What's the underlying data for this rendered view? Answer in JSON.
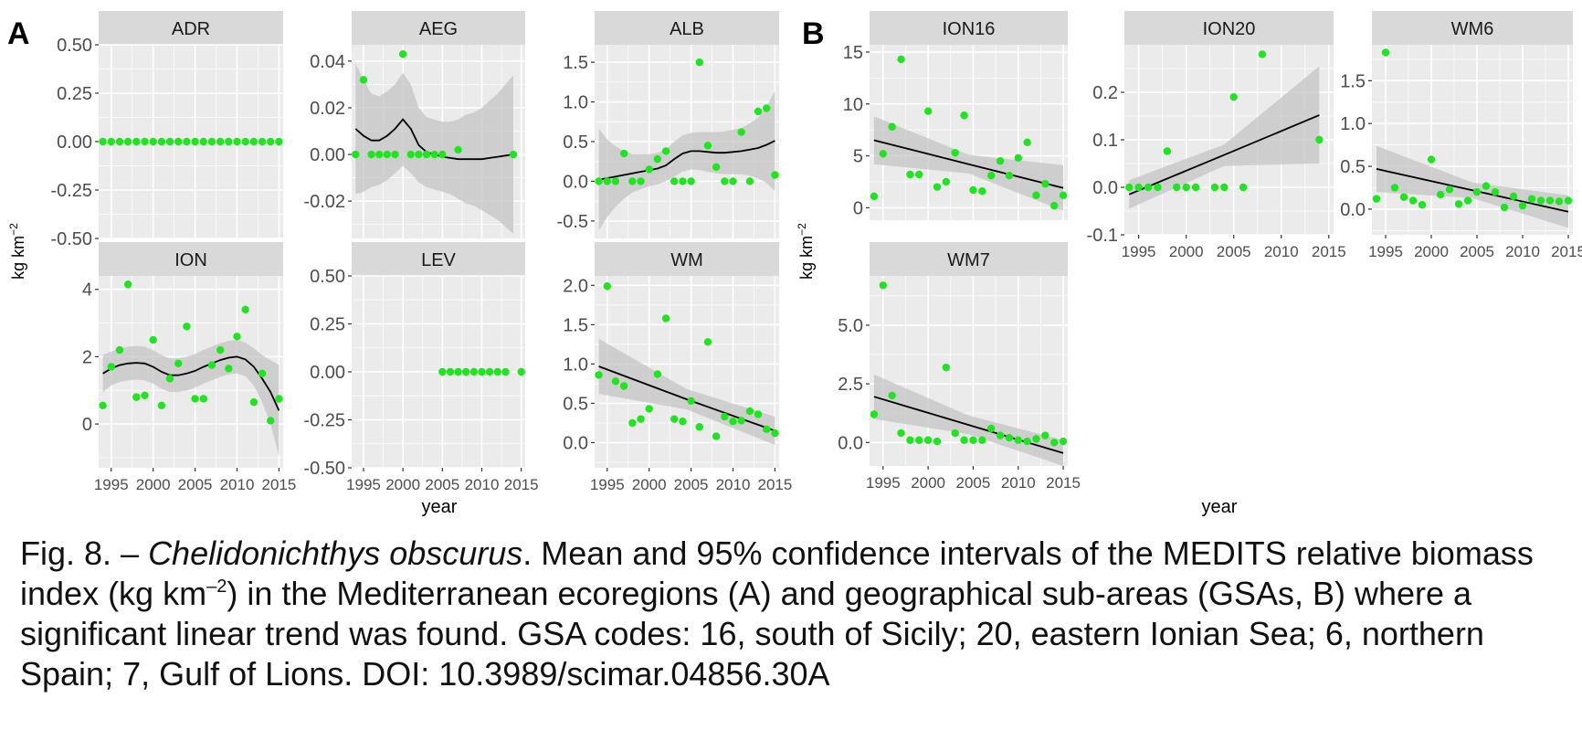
{
  "figure": {
    "panel_a_label": "A",
    "panel_b_label": "B",
    "ylabel_main": "kg km",
    "ylabel_sup": "−2",
    "xlabel": "year"
  },
  "colors": {
    "panel_bg": "#ebebeb",
    "grid": "#ffffff",
    "strip_bg": "#d9d9d9",
    "point": "#1ee61e",
    "line": "#000000",
    "ribbon": "#c4c4c4",
    "text": "#4d4d4d"
  },
  "caption": {
    "p1": "Fig. 8. – ",
    "species": "Chelidonichthys obscurus",
    "p2": ". Mean and 95% confidence intervals of the MEDITS relative biomass index (kg km",
    "p2_sup": "–2",
    "p3": ") in the Mediterranean ecoregions (A) and geographical sub-areas (GSAs, B) where a significant linear trend was found. GSA codes: 16, south of Sicily; 20, eastern Ionian Sea; 6, northern Spain; 7, Gulf of Lions. DOI: 10.3989/scimar.04856.30A"
  },
  "chart_data": [
    {
      "type": "scatter",
      "title": "ADR",
      "fit": "loess",
      "xlim": [
        1993.5,
        2015.5
      ],
      "ylim": [
        -0.5,
        0.5
      ],
      "yticks": [
        -0.5,
        -0.25,
        0,
        0.25,
        0.5
      ],
      "ytick_labels": [
        "-0.50",
        "-0.25",
        "0.00",
        "0.25",
        "0.50"
      ],
      "xticks": [],
      "x": [
        1994,
        1995,
        1996,
        1997,
        1998,
        1999,
        2000,
        2001,
        2002,
        2003,
        2004,
        2005,
        2006,
        2007,
        2008,
        2009,
        2010,
        2011,
        2012,
        2013,
        2014,
        2015
      ],
      "y": [
        0,
        0,
        0,
        0,
        0,
        0,
        0,
        0,
        0,
        0,
        0,
        0,
        0,
        0,
        0,
        0,
        0,
        0,
        0,
        0,
        0,
        0
      ],
      "fit_x": [],
      "fit_y": [],
      "ci_lo": [],
      "ci_hi": []
    },
    {
      "type": "scatter",
      "title": "AEG",
      "fit": "loess",
      "xlim": [
        1993.5,
        2015.5
      ],
      "ylim": [
        -0.036,
        0.047
      ],
      "yticks": [
        -0.02,
        0,
        0.02,
        0.04
      ],
      "ytick_labels": [
        "-0.02",
        "0.00",
        "0.02",
        "0.04"
      ],
      "xticks": [],
      "x": [
        1994,
        1995,
        1996,
        1997,
        1998,
        1999,
        2000,
        2001,
        2002,
        2003,
        2004,
        2005,
        2007,
        2014
      ],
      "y": [
        0,
        0.032,
        0,
        0,
        0,
        0,
        0.043,
        0,
        0,
        0,
        0,
        0,
        0.002,
        0
      ],
      "fit_x": [
        1994,
        1995,
        1996,
        1997,
        1998,
        1999,
        2000,
        2001,
        2002,
        2003,
        2004,
        2005,
        2006,
        2007,
        2008,
        2009,
        2010,
        2011,
        2012,
        2013,
        2014
      ],
      "fit_y": [
        0.011,
        0.008,
        0.006,
        0.006,
        0.008,
        0.011,
        0.015,
        0.011,
        0.004,
        0.001,
        0,
        -0.001,
        -0.0015,
        -0.002,
        -0.002,
        -0.002,
        -0.002,
        -0.0015,
        -0.001,
        -0.0005,
        0
      ],
      "ci_lo": [
        -0.017,
        -0.016,
        -0.014,
        -0.013,
        -0.011,
        -0.008,
        -0.005,
        -0.008,
        -0.012,
        -0.014,
        -0.015,
        -0.016,
        -0.017,
        -0.019,
        -0.021,
        -0.022,
        -0.024,
        -0.026,
        -0.028,
        -0.031,
        -0.034
      ],
      "ci_hi": [
        0.039,
        0.032,
        0.026,
        0.025,
        0.027,
        0.03,
        0.035,
        0.03,
        0.02,
        0.016,
        0.015,
        0.014,
        0.014,
        0.015,
        0.017,
        0.018,
        0.02,
        0.023,
        0.026,
        0.03,
        0.034
      ]
    },
    {
      "type": "scatter",
      "title": "ALB",
      "fit": "loess",
      "xlim": [
        1993.5,
        2015.5
      ],
      "ylim": [
        -0.72,
        1.72
      ],
      "yticks": [
        -0.5,
        0,
        0.5,
        1.0,
        1.5
      ],
      "ytick_labels": [
        "-0.5",
        "0.0",
        "0.5",
        "1.0",
        "1.5"
      ],
      "xticks": [],
      "x": [
        1994,
        1995,
        1996,
        1997,
        1998,
        1999,
        2000,
        2001,
        2002,
        2003,
        2004,
        2005,
        2006,
        2007,
        2008,
        2009,
        2010,
        2011,
        2012,
        2013,
        2014,
        2015
      ],
      "y": [
        0,
        0,
        0,
        0.35,
        0,
        0,
        0.15,
        0.28,
        0.38,
        0,
        0,
        0,
        1.5,
        0.45,
        0.18,
        0,
        0,
        0.62,
        0,
        0.88,
        0.92,
        0.08
      ],
      "fit_x": [
        1994,
        1995,
        1996,
        1997,
        1998,
        1999,
        2000,
        2001,
        2002,
        2003,
        2004,
        2005,
        2006,
        2007,
        2008,
        2009,
        2010,
        2011,
        2012,
        2013,
        2014,
        2015
      ],
      "fit_y": [
        0.02,
        0.04,
        0.06,
        0.08,
        0.1,
        0.12,
        0.14,
        0.16,
        0.2,
        0.28,
        0.35,
        0.38,
        0.38,
        0.37,
        0.36,
        0.36,
        0.37,
        0.38,
        0.4,
        0.42,
        0.46,
        0.51
      ],
      "ci_lo": [
        -0.62,
        -0.45,
        -0.32,
        -0.22,
        -0.14,
        -0.1,
        -0.06,
        -0.04,
        0.0,
        0.06,
        0.12,
        0.15,
        0.14,
        0.12,
        0.1,
        0.09,
        0.09,
        0.09,
        0.07,
        0.04,
        -0.02,
        -0.12
      ],
      "ci_hi": [
        0.66,
        0.53,
        0.44,
        0.38,
        0.34,
        0.34,
        0.34,
        0.36,
        0.4,
        0.5,
        0.58,
        0.61,
        0.62,
        0.62,
        0.62,
        0.63,
        0.65,
        0.67,
        0.73,
        0.8,
        0.94,
        1.14
      ]
    },
    {
      "type": "scatter",
      "title": "ION",
      "fit": "loess",
      "xlim": [
        1993.5,
        2015.5
      ],
      "ylim": [
        -1.3,
        4.4
      ],
      "yticks": [
        0,
        2,
        4
      ],
      "ytick_labels": [
        "0",
        "2",
        "4"
      ],
      "xticks": [
        1995,
        2000,
        2005,
        2010,
        2015
      ],
      "xtick_labels": [
        "1995",
        "2000",
        "2005",
        "2010",
        "2015"
      ],
      "x": [
        1994,
        1995,
        1996,
        1997,
        1998,
        1999,
        2000,
        2001,
        2002,
        2003,
        2004,
        2005,
        2006,
        2007,
        2008,
        2009,
        2010,
        2011,
        2012,
        2013,
        2014,
        2015
      ],
      "y": [
        0.55,
        1.7,
        2.2,
        4.15,
        0.8,
        0.85,
        2.5,
        0.55,
        1.35,
        1.8,
        2.9,
        0.75,
        0.75,
        1.75,
        2.2,
        1.65,
        2.6,
        3.4,
        0.65,
        1.5,
        0.1,
        0.75
      ],
      "fit_x": [
        1994,
        1995,
        1996,
        1997,
        1998,
        1999,
        2000,
        2001,
        2002,
        2003,
        2004,
        2005,
        2006,
        2007,
        2008,
        2009,
        2010,
        2011,
        2012,
        2013,
        2014,
        2015
      ],
      "fit_y": [
        1.5,
        1.65,
        1.75,
        1.8,
        1.82,
        1.8,
        1.7,
        1.55,
        1.45,
        1.45,
        1.5,
        1.58,
        1.7,
        1.8,
        1.9,
        1.97,
        2.0,
        1.92,
        1.7,
        1.35,
        0.95,
        0.4
      ],
      "ci_lo": [
        0.95,
        1.15,
        1.25,
        1.3,
        1.32,
        1.3,
        1.2,
        1.05,
        0.95,
        0.95,
        1.0,
        1.08,
        1.2,
        1.3,
        1.4,
        1.47,
        1.5,
        1.42,
        1.15,
        0.65,
        0.0,
        -0.95
      ],
      "ci_hi": [
        2.05,
        2.15,
        2.25,
        2.3,
        2.32,
        2.3,
        2.2,
        2.05,
        1.95,
        1.95,
        2.0,
        2.08,
        2.2,
        2.3,
        2.4,
        2.47,
        2.5,
        2.42,
        2.25,
        2.05,
        1.9,
        1.75
      ]
    },
    {
      "type": "scatter",
      "title": "LEV",
      "fit": "loess",
      "xlim": [
        1993.5,
        2015.5
      ],
      "ylim": [
        -0.5,
        0.5
      ],
      "yticks": [
        -0.5,
        -0.25,
        0,
        0.25,
        0.5
      ],
      "ytick_labels": [
        "-0.50",
        "-0.25",
        "0.00",
        "0.25",
        "0.50"
      ],
      "xticks": [
        1995,
        2000,
        2005,
        2010,
        2015
      ],
      "xtick_labels": [
        "1995",
        "2000",
        "2005",
        "2010",
        "2015"
      ],
      "x": [
        2005,
        2006,
        2007,
        2008,
        2009,
        2010,
        2011,
        2012,
        2013,
        2015
      ],
      "y": [
        0,
        0,
        0,
        0,
        0,
        0,
        0,
        0,
        0,
        0
      ],
      "fit_x": [],
      "fit_y": [],
      "ci_lo": [],
      "ci_hi": []
    },
    {
      "type": "scatter",
      "title": "WM",
      "fit": "linear",
      "xlim": [
        1993.5,
        2015.5
      ],
      "ylim": [
        -0.32,
        2.12
      ],
      "yticks": [
        0,
        0.5,
        1.0,
        1.5,
        2.0
      ],
      "ytick_labels": [
        "0.0",
        "0.5",
        "1.0",
        "1.5",
        "2.0"
      ],
      "xticks": [
        1995,
        2000,
        2005,
        2010,
        2015
      ],
      "xtick_labels": [
        "1995",
        "2000",
        "2005",
        "2010",
        "2015"
      ],
      "x": [
        1994,
        1995,
        1996,
        1997,
        1998,
        1999,
        2000,
        2001,
        2002,
        2003,
        2004,
        2005,
        2006,
        2007,
        2008,
        2009,
        2010,
        2011,
        2012,
        2013,
        2014,
        2015
      ],
      "y": [
        0.86,
        1.99,
        0.78,
        0.72,
        0.25,
        0.3,
        0.43,
        0.87,
        1.58,
        0.3,
        0.27,
        0.53,
        0.2,
        1.28,
        0.08,
        0.33,
        0.27,
        0.28,
        0.4,
        0.36,
        0.17,
        0.12
      ],
      "fit_x": [
        1994,
        2004.5,
        2015
      ],
      "fit_y": [
        0.97,
        0.55,
        0.15
      ],
      "ci_lo": [
        0.62,
        0.42,
        -0.03
      ],
      "ci_hi": [
        1.32,
        0.68,
        0.33
      ]
    },
    {
      "type": "scatter",
      "title": "ION16",
      "fit": "linear",
      "xlim": [
        1993.5,
        2015.5
      ],
      "ylim": [
        -1.2,
        15.7
      ],
      "yticks": [
        0,
        5,
        10,
        15
      ],
      "ytick_labels": [
        "0",
        "5",
        "10",
        "15"
      ],
      "xticks": [],
      "x": [
        1994,
        1995,
        1996,
        1997,
        1998,
        1999,
        2000,
        2001,
        2002,
        2003,
        2004,
        2005,
        2006,
        2007,
        2008,
        2009,
        2010,
        2011,
        2012,
        2013,
        2014,
        2015
      ],
      "y": [
        1.1,
        5.2,
        7.8,
        14.3,
        3.2,
        3.2,
        9.3,
        2.0,
        2.5,
        5.3,
        8.9,
        1.7,
        1.6,
        3.1,
        4.5,
        3.1,
        4.8,
        6.3,
        1.2,
        2.3,
        0.2,
        1.2
      ],
      "fit_x": [
        1994,
        2004.5,
        2015
      ],
      "fit_y": [
        6.5,
        4.2,
        1.9
      ],
      "ci_lo": [
        4.2,
        3.3,
        -0.3
      ],
      "ci_hi": [
        8.8,
        5.1,
        4.1
      ]
    },
    {
      "type": "scatter",
      "title": "ION20",
      "fit": "linear",
      "xlim": [
        1993.5,
        2015.5
      ],
      "ylim": [
        -0.1,
        0.3
      ],
      "yticks": [
        -0.1,
        0,
        0.1,
        0.2
      ],
      "ytick_labels": [
        "-0.1",
        "0.0",
        "0.1",
        "0.2"
      ],
      "xticks": [
        1995,
        2000,
        2005,
        2010,
        2015
      ],
      "xtick_labels": [
        "1995",
        "2000",
        "2005",
        "2010",
        "2015"
      ],
      "x": [
        1994,
        1995,
        1996,
        1997,
        1998,
        1999,
        2000,
        2001,
        2003,
        2004,
        2005,
        2006,
        2008,
        2014
      ],
      "y": [
        0,
        0,
        0,
        0,
        0.076,
        0,
        0,
        0,
        0,
        0,
        0.19,
        0,
        0.28,
        0.1
      ],
      "fit_x": [
        1994,
        2004,
        2014
      ],
      "fit_y": [
        -0.015,
        0.068,
        0.152
      ],
      "ci_lo": [
        -0.045,
        0.045,
        0.05
      ],
      "ci_hi": [
        0.015,
        0.09,
        0.255
      ]
    },
    {
      "type": "scatter",
      "title": "WM6",
      "fit": "linear",
      "xlim": [
        1993.5,
        2015.5
      ],
      "ylim": [
        -0.3,
        1.92
      ],
      "yticks": [
        0,
        0.5,
        1.0,
        1.5
      ],
      "ytick_labels": [
        "0.0",
        "0.5",
        "1.0",
        "1.5"
      ],
      "xticks": [
        1995,
        2000,
        2005,
        2010,
        2015
      ],
      "xtick_labels": [
        "1995",
        "2000",
        "2005",
        "2010",
        "2015"
      ],
      "x": [
        1994,
        1995,
        1996,
        1997,
        1998,
        1999,
        2000,
        2001,
        2002,
        2003,
        2004,
        2005,
        2006,
        2007,
        2008,
        2009,
        2010,
        2011,
        2012,
        2013,
        2014,
        2015
      ],
      "y": [
        0.12,
        1.83,
        0.25,
        0.14,
        0.1,
        0.05,
        0.58,
        0.17,
        0.23,
        0.06,
        0.1,
        0.2,
        0.27,
        0.2,
        0.02,
        0.15,
        0.04,
        0.12,
        0.1,
        0.1,
        0.09,
        0.1
      ],
      "fit_x": [
        1994,
        2004.5,
        2015
      ],
      "fit_y": [
        0.47,
        0.22,
        -0.03
      ],
      "ci_lo": [
        0.2,
        0.13,
        -0.22
      ],
      "ci_hi": [
        0.74,
        0.31,
        0.16
      ]
    },
    {
      "type": "scatter",
      "title": "WM7",
      "fit": "linear",
      "xlim": [
        1993.5,
        2015.5
      ],
      "ylim": [
        -1.0,
        7.1
      ],
      "yticks": [
        0,
        2.5,
        5.0
      ],
      "ytick_labels": [
        "0.0",
        "2.5",
        "5.0"
      ],
      "xticks": [
        1995,
        2000,
        2005,
        2010,
        2015
      ],
      "xtick_labels": [
        "1995",
        "2000",
        "2005",
        "2010",
        "2015"
      ],
      "x": [
        1994,
        1995,
        1996,
        1997,
        1998,
        1999,
        2000,
        2001,
        2002,
        2003,
        2004,
        2005,
        2006,
        2007,
        2008,
        2009,
        2010,
        2011,
        2012,
        2013,
        2014,
        2015
      ],
      "y": [
        1.2,
        6.7,
        2.0,
        0.4,
        0.1,
        0.1,
        0.1,
        0.05,
        3.2,
        0.4,
        0.1,
        0.1,
        0.1,
        0.6,
        0.3,
        0.2,
        0.1,
        0.05,
        0.15,
        0.3,
        0.0,
        0.05
      ],
      "fit_x": [
        1994,
        2004.5,
        2015
      ],
      "fit_y": [
        1.95,
        0.75,
        -0.45
      ],
      "ci_lo": [
        1.0,
        0.35,
        -1.0
      ],
      "ci_hi": [
        2.9,
        1.15,
        0.1
      ]
    }
  ]
}
